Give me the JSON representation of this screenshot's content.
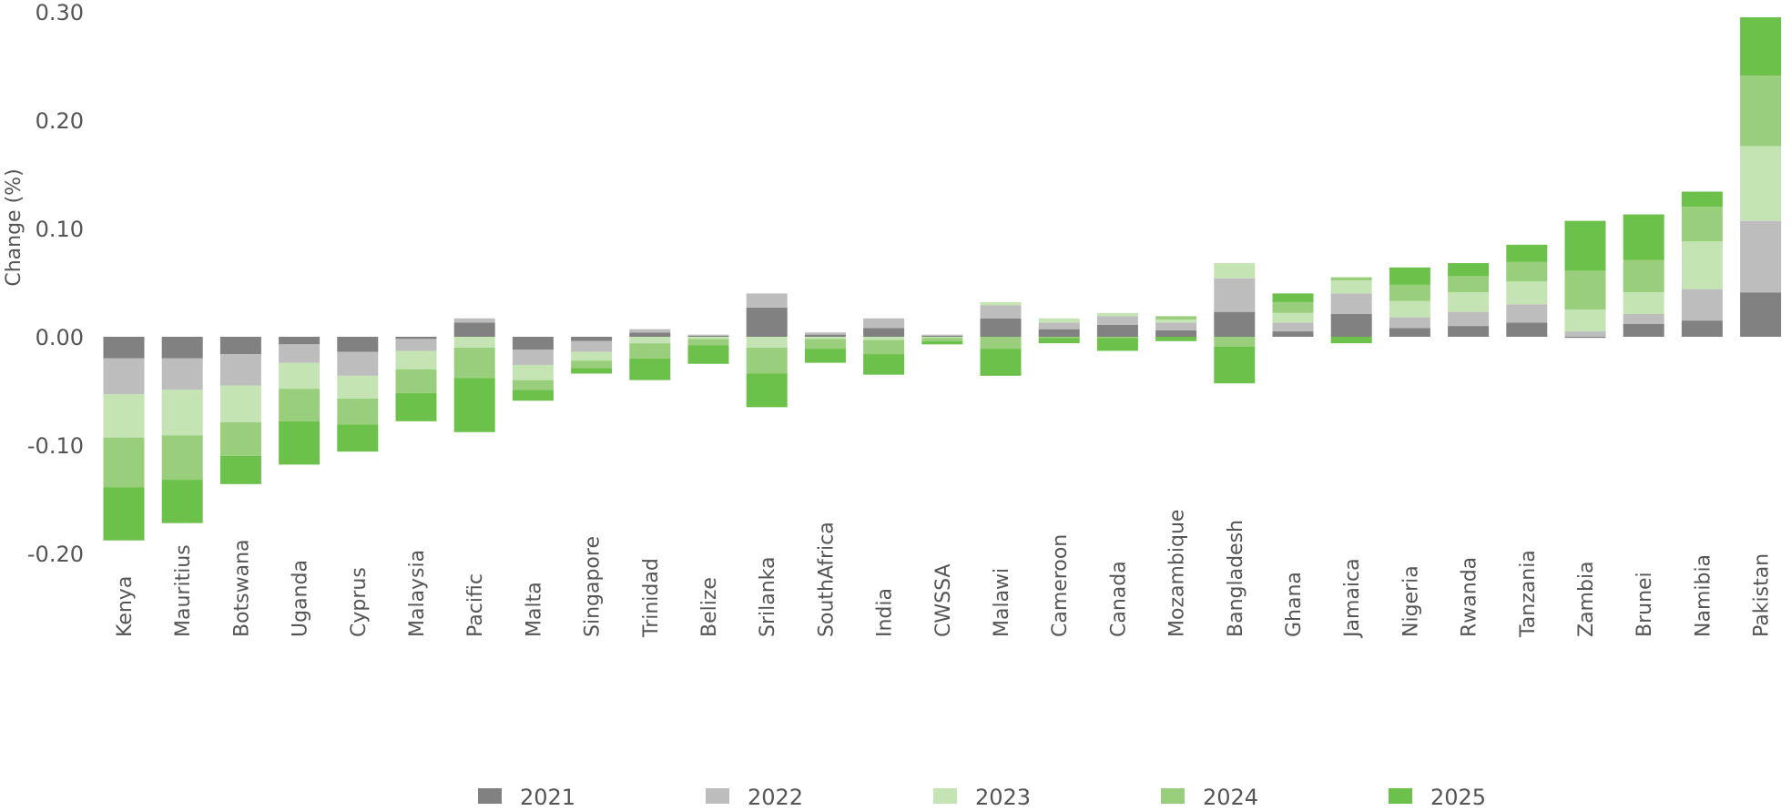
{
  "chart_data": {
    "type": "bar",
    "stacked": true,
    "ylabel": "Change (%)",
    "ylim": [
      -0.2,
      0.3
    ],
    "yticks": [
      {
        "value": 0.3,
        "label": "0.30"
      },
      {
        "value": 0.2,
        "label": "0.20"
      },
      {
        "value": 0.1,
        "label": "0.10"
      },
      {
        "value": 0.0,
        "label": "0.00"
      },
      {
        "value": -0.1,
        "label": "-0.10"
      },
      {
        "value": -0.2,
        "label": "-0.20"
      }
    ],
    "grid": false,
    "legend_position": "bottom",
    "categories": [
      "Kenya",
      "Mauritius",
      "Botswana",
      "Uganda",
      "Cyprus",
      "Malaysia",
      "Pacific",
      "Malta",
      "Singapore",
      "Trinidad",
      "Belize",
      "Srilanka",
      "SouthAfrica",
      "India",
      "CWSSA",
      "Malawi",
      "Cameroon",
      "Canada",
      "Mozambique",
      "Bangladesh",
      "Ghana",
      "Jamaica",
      "Nigeria",
      "Rwanda",
      "Tanzania",
      "Zambia",
      "Brunei",
      "Namibia",
      "Pakistan"
    ],
    "series": [
      {
        "name": "2021",
        "color": "#818181",
        "values": [
          -0.02,
          -0.02,
          -0.016,
          -0.007,
          -0.014,
          -0.002,
          0.013,
          -0.012,
          -0.004,
          0.004,
          0.001,
          0.027,
          0.002,
          0.008,
          0.001,
          0.017,
          0.007,
          0.011,
          0.006,
          0.023,
          0.005,
          0.021,
          0.008,
          0.01,
          0.013,
          -0.001,
          0.012,
          0.015,
          0.041
        ]
      },
      {
        "name": "2022",
        "color": "#bdbdbe",
        "values": [
          -0.033,
          -0.029,
          -0.029,
          -0.017,
          -0.022,
          -0.011,
          0.004,
          -0.014,
          -0.01,
          0.003,
          0.001,
          0.013,
          0.002,
          0.009,
          0.001,
          0.012,
          0.006,
          0.008,
          0.007,
          0.031,
          0.008,
          0.019,
          0.01,
          0.013,
          0.017,
          0.005,
          0.009,
          0.029,
          0.066
        ]
      },
      {
        "name": "2023",
        "color": "#c5e4b3",
        "values": [
          -0.04,
          -0.042,
          -0.034,
          -0.024,
          -0.021,
          -0.017,
          -0.01,
          -0.014,
          -0.008,
          -0.006,
          -0.002,
          -0.01,
          -0.002,
          -0.003,
          -0.001,
          0.003,
          0.004,
          0.003,
          0.003,
          0.014,
          0.009,
          0.012,
          0.015,
          0.018,
          0.021,
          0.02,
          0.02,
          0.044,
          0.069
        ]
      },
      {
        "name": "2024",
        "color": "#99cf7c",
        "values": [
          -0.046,
          -0.041,
          -0.031,
          -0.03,
          -0.024,
          -0.022,
          -0.028,
          -0.009,
          -0.007,
          -0.014,
          -0.006,
          -0.024,
          -0.009,
          -0.013,
          -0.003,
          -0.011,
          -0.001,
          -0.001,
          0.003,
          -0.009,
          0.01,
          0.003,
          0.015,
          0.015,
          0.018,
          0.036,
          0.03,
          0.032,
          0.065
        ]
      },
      {
        "name": "2025",
        "color": "#6cc14b",
        "values": [
          -0.049,
          -0.04,
          -0.026,
          -0.04,
          -0.025,
          -0.026,
          -0.05,
          -0.01,
          -0.005,
          -0.02,
          -0.017,
          -0.031,
          -0.013,
          -0.019,
          -0.003,
          -0.025,
          -0.005,
          -0.012,
          -0.004,
          -0.034,
          0.008,
          -0.006,
          0.016,
          0.012,
          0.016,
          0.046,
          0.042,
          0.014,
          0.054
        ]
      }
    ]
  }
}
